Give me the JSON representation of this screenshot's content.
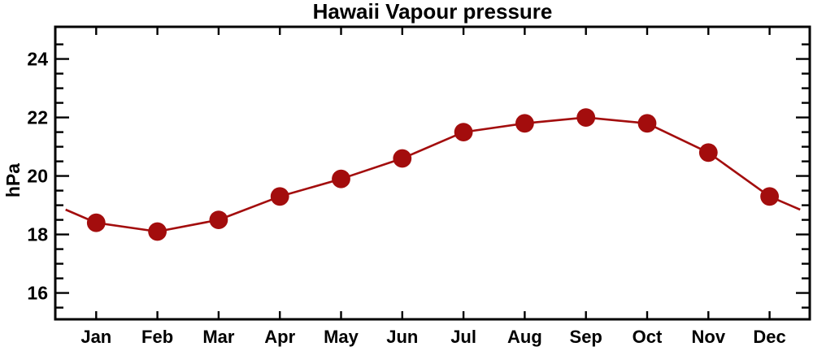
{
  "chart_data": {
    "type": "line",
    "title": "Hawaii Vapour pressure",
    "ylabel": "hPa",
    "xlabel": "",
    "categories": [
      "Jan",
      "Feb",
      "Mar",
      "Apr",
      "May",
      "Jun",
      "Jul",
      "Aug",
      "Sep",
      "Oct",
      "Nov",
      "Dec"
    ],
    "values": [
      18.4,
      18.1,
      18.5,
      19.3,
      19.9,
      20.6,
      21.5,
      21.8,
      22.0,
      21.8,
      20.8,
      19.3
    ],
    "edge_wrap_value": 18.85,
    "ylim": [
      15.1,
      25.1
    ],
    "y_major_ticks": [
      16,
      18,
      20,
      22,
      24
    ],
    "y_major_labels": [
      "16",
      "18",
      "20",
      "22",
      "24"
    ],
    "y_minor_step": 0.5,
    "grid": false,
    "legend": false,
    "line_color": "#a30d0d",
    "axis_color": "#000000",
    "marker": "circle"
  }
}
